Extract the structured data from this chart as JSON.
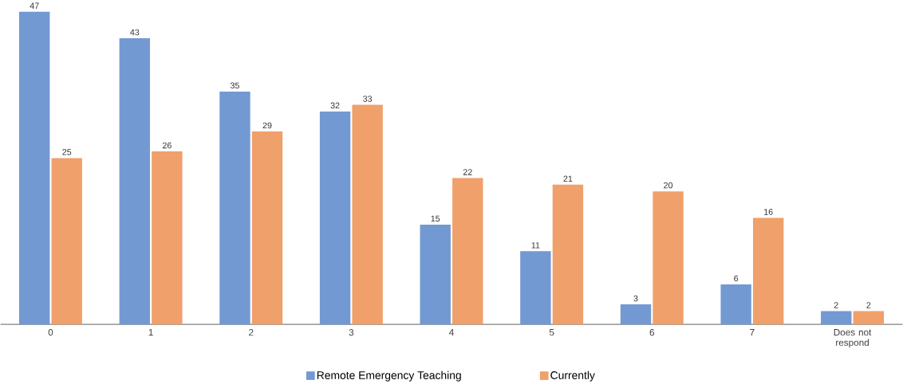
{
  "chart_data": {
    "type": "bar",
    "categories": [
      "0",
      "1",
      "2",
      "3",
      "4",
      "5",
      "6",
      "7",
      "Does not respond"
    ],
    "series": [
      {
        "name": "Remote Emergency Teaching",
        "color": "#7399d3",
        "values": [
          47,
          43,
          35,
          32,
          15,
          11,
          3,
          6,
          2
        ]
      },
      {
        "name": "Currently",
        "color": "#f0a06a",
        "values": [
          25,
          26,
          29,
          33,
          22,
          21,
          20,
          16,
          2
        ]
      }
    ],
    "tick_labels": "x",
    "legend": "bottom",
    "data_labels": true
  }
}
